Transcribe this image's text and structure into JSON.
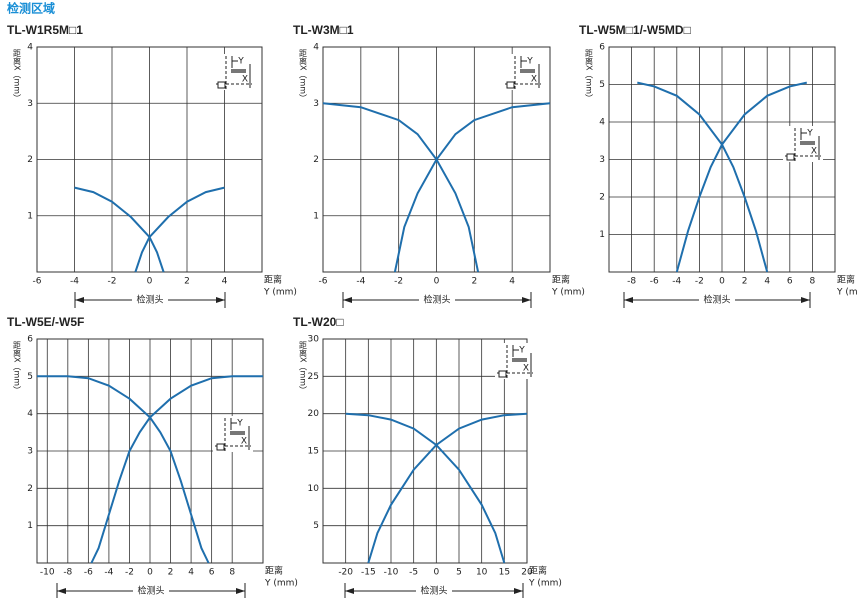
{
  "title": "检测区域",
  "chart_data": [
    {
      "type": "line",
      "title": "TL-W1R5M□1",
      "x_label": [
        "距离",
        "Y (mm)"
      ],
      "y_label": "距离X（mm）",
      "annotation": "检测头",
      "diagram_labels": [
        "Y",
        "X"
      ],
      "xlim": [
        -6,
        6
      ],
      "xticks": [
        -6,
        -4,
        -2,
        0,
        2,
        4
      ],
      "ylim": [
        0,
        4
      ],
      "yticks": [
        1,
        2,
        3,
        4
      ],
      "grid": true,
      "series": [
        {
          "color": "#1f6fad",
          "x": [
            -4,
            -3,
            -2,
            -1,
            0,
            0.4,
            0.75
          ],
          "values": [
            1.5,
            1.42,
            1.25,
            0.98,
            0.62,
            0.35,
            0
          ]
        },
        {
          "color": "#1f6fad",
          "x": [
            -0.75,
            -0.4,
            0,
            1,
            2,
            3,
            4
          ],
          "values": [
            0,
            0.35,
            0.62,
            0.98,
            1.25,
            1.42,
            1.5
          ]
        }
      ]
    },
    {
      "type": "line",
      "title": "TL-W3M□1",
      "x_label": [
        "距离",
        "Y (mm)"
      ],
      "y_label": "距离X（mm）",
      "annotation": "检测头",
      "diagram_labels": [
        "Y",
        "X"
      ],
      "xlim": [
        -6,
        6
      ],
      "xticks": [
        -6,
        -4,
        -2,
        0,
        2,
        4
      ],
      "ylim": [
        0,
        4
      ],
      "yticks": [
        1,
        2,
        3,
        4
      ],
      "grid": true,
      "series": [
        {
          "color": "#1f6fad",
          "x": [
            -6,
            -4,
            -2,
            -1,
            0,
            1,
            1.7,
            2.2
          ],
          "values": [
            3,
            2.93,
            2.7,
            2.45,
            2.0,
            1.4,
            0.8,
            0
          ]
        },
        {
          "color": "#1f6fad",
          "x": [
            -2.2,
            -1.7,
            -1,
            0,
            1,
            2,
            4,
            6
          ],
          "values": [
            0,
            0.8,
            1.4,
            2.0,
            2.45,
            2.7,
            2.93,
            3
          ]
        }
      ]
    },
    {
      "type": "line",
      "title": "TL-W5M□1/-W5MD□",
      "x_label": [
        "距离",
        "Y (mm)"
      ],
      "y_label": "距离X（mm）",
      "annotation": "检测头",
      "diagram_labels": [
        "Y",
        "X"
      ],
      "xlim": [
        -10,
        10
      ],
      "xticks": [
        -8,
        -6,
        -4,
        -2,
        0,
        2,
        4,
        6,
        8
      ],
      "ylim": [
        0,
        6
      ],
      "yticks": [
        1,
        2,
        3,
        4,
        5,
        6
      ],
      "grid": true,
      "series": [
        {
          "color": "#1f6fad",
          "x": [
            -7.5,
            -6,
            -4,
            -2,
            0,
            1,
            2,
            3,
            4
          ],
          "values": [
            5.05,
            4.95,
            4.7,
            4.2,
            3.4,
            2.8,
            2.0,
            1.1,
            0
          ]
        },
        {
          "color": "#1f6fad",
          "x": [
            -4,
            -3,
            -2,
            -1,
            0,
            2,
            4,
            6,
            7.5
          ],
          "values": [
            0,
            1.1,
            2.0,
            2.8,
            3.4,
            4.2,
            4.7,
            4.95,
            5.05
          ]
        }
      ]
    },
    {
      "type": "line",
      "title": "TL-W5E/-W5F",
      "x_label": [
        "距离",
        "Y (mm)"
      ],
      "y_label": "距离X（mm）",
      "annotation": "检测头",
      "diagram_labels": [
        "Y",
        "X"
      ],
      "xlim": [
        -11,
        11
      ],
      "xticks": [
        -10,
        -8,
        -6,
        -4,
        -2,
        0,
        2,
        4,
        6,
        8
      ],
      "ylim": [
        0,
        6
      ],
      "yticks": [
        1,
        2,
        3,
        4,
        5,
        6
      ],
      "grid": true,
      "series": [
        {
          "color": "#1f6fad",
          "x": [
            -11,
            -8,
            -6,
            -4,
            -2,
            0,
            1,
            2,
            3,
            4,
            5,
            5.7
          ],
          "values": [
            5.0,
            5.0,
            4.95,
            4.75,
            4.4,
            3.9,
            3.5,
            3.0,
            2.2,
            1.3,
            0.4,
            0
          ]
        },
        {
          "color": "#1f6fad",
          "x": [
            -5.7,
            -5,
            -4,
            -3,
            -2,
            -1,
            0,
            2,
            4,
            6,
            8,
            11
          ],
          "values": [
            0,
            0.4,
            1.3,
            2.2,
            3.0,
            3.5,
            3.9,
            4.4,
            4.75,
            4.95,
            5.0,
            5.0
          ]
        }
      ]
    },
    {
      "type": "line",
      "title": "TL-W20□",
      "x_label": [
        "距离",
        "Y (mm)"
      ],
      "y_label": "距离X（mm）",
      "annotation": "检测头",
      "diagram_labels": [
        "Y",
        "X"
      ],
      "xlim": [
        -25,
        20
      ],
      "xticks": [
        -20,
        -15,
        -10,
        -5,
        0,
        5,
        10,
        15,
        20
      ],
      "ylim": [
        0,
        30
      ],
      "yticks": [
        5,
        10,
        15,
        20,
        25,
        30
      ],
      "grid": true,
      "series": [
        {
          "color": "#1f6fad",
          "x": [
            -20,
            -15,
            -10,
            -5,
            0,
            5,
            10,
            13,
            15
          ],
          "values": [
            20,
            19.8,
            19.2,
            18.0,
            15.8,
            12.5,
            7.8,
            4,
            0
          ]
        },
        {
          "color": "#1f6fad",
          "x": [
            -15,
            -13,
            -10,
            -5,
            0,
            5,
            10,
            15,
            20
          ],
          "values": [
            0,
            4,
            7.8,
            12.5,
            15.8,
            18.0,
            19.2,
            19.8,
            20
          ]
        }
      ]
    }
  ]
}
